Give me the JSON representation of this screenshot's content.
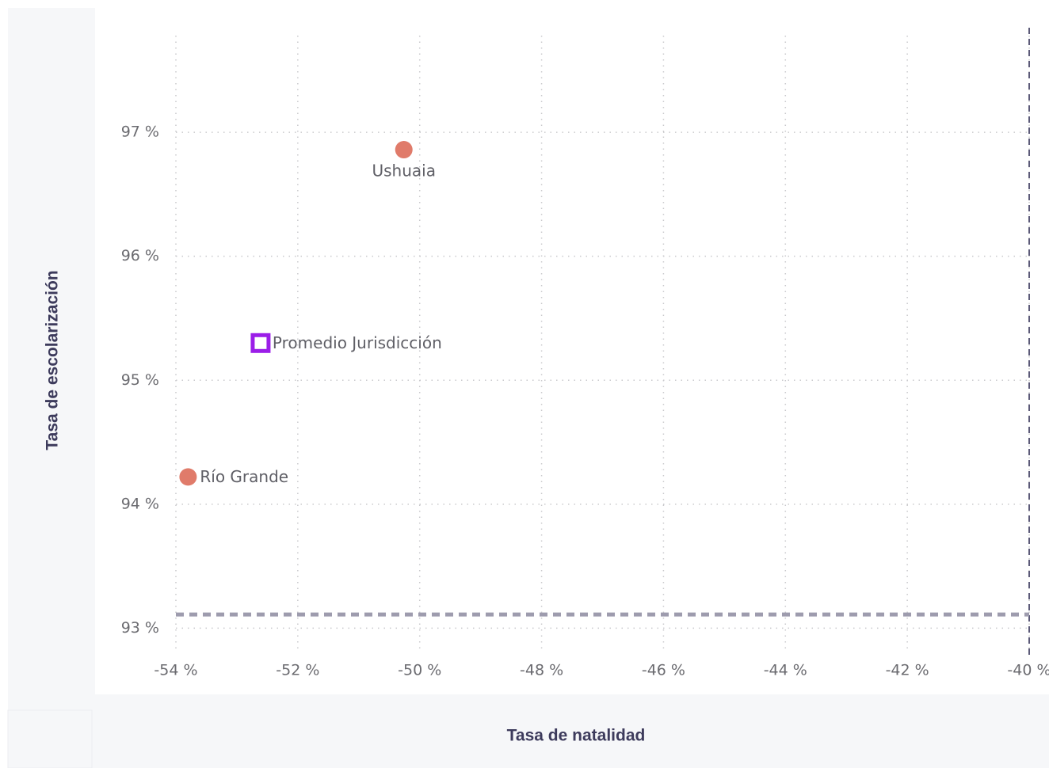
{
  "chart_data": {
    "type": "scatter",
    "x_label": "Tasa de natalidad",
    "y_label": "Tasa de escolarización",
    "xlim": [
      -54.0,
      -40.0
    ],
    "ylim": [
      92.83,
      97.78
    ],
    "xticks": [
      {
        "value": -54,
        "label": "-54 %"
      },
      {
        "value": -52,
        "label": "-52 %"
      },
      {
        "value": -50,
        "label": "-50 %"
      },
      {
        "value": -48,
        "label": "-48 %"
      },
      {
        "value": -46,
        "label": "-46 %"
      },
      {
        "value": -44,
        "label": "-44 %"
      },
      {
        "value": -42,
        "label": "-42 %"
      },
      {
        "value": -40,
        "label": "-40 %"
      }
    ],
    "yticks": [
      {
        "value": 93,
        "label": "93 %"
      },
      {
        "value": 94,
        "label": "94 %"
      },
      {
        "value": 95,
        "label": "95 %"
      },
      {
        "value": 96,
        "label": "96 %"
      },
      {
        "value": 97,
        "label": "97 %"
      }
    ],
    "grid": true,
    "reference_lines": {
      "x": -40.0,
      "y": 93.11
    },
    "points": [
      {
        "label": "Ushuaia",
        "x": -50.26,
        "y": 96.86,
        "marker": "circle",
        "color": "#e07b6a"
      },
      {
        "label": "Promedio Jurisdicción",
        "x": -52.61,
        "y": 95.3,
        "marker": "square",
        "color": "#9b1de8"
      },
      {
        "label": "Río Grande",
        "x": -53.8,
        "y": 94.22,
        "marker": "circle",
        "color": "#e07b6a"
      }
    ]
  }
}
